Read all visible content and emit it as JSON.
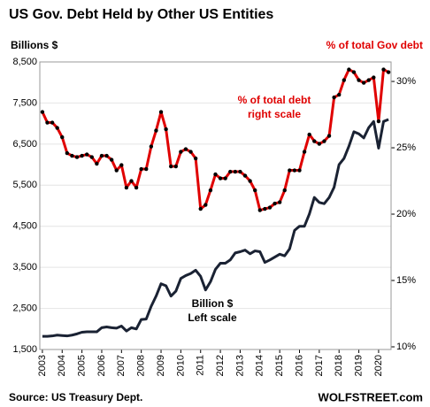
{
  "chart_data": {
    "type": "line",
    "title": "US Gov. Debt Held by Other US Entities",
    "y_label": "Billions $",
    "y2_label": "% of total Gov debt",
    "annotations": [
      {
        "lines": [
          "% of total debt",
          "right scale"
        ],
        "color": "#e00000"
      },
      {
        "lines": [
          "Billion $",
          "Left scale"
        ],
        "color": "#000000"
      }
    ],
    "source": "Source: US Treasury Dept.",
    "brand": "WOLFSTREET.com",
    "x": [
      2003,
      2003.25,
      2003.5,
      2003.75,
      2004,
      2004.25,
      2004.5,
      2004.75,
      2005,
      2005.25,
      2005.5,
      2005.75,
      2006,
      2006.25,
      2006.5,
      2006.75,
      2007,
      2007.25,
      2007.5,
      2007.75,
      2008,
      2008.25,
      2008.5,
      2008.75,
      2009,
      2009.25,
      2009.5,
      2009.75,
      2010,
      2010.25,
      2010.5,
      2010.75,
      2011,
      2011.25,
      2011.5,
      2011.75,
      2012,
      2012.25,
      2012.5,
      2012.75,
      2013,
      2013.25,
      2013.5,
      2013.75,
      2014,
      2014.25,
      2014.5,
      2014.75,
      2015,
      2015.25,
      2015.5,
      2015.75,
      2016,
      2016.25,
      2016.5,
      2016.75,
      2017,
      2017.25,
      2017.5,
      2017.75,
      2018,
      2018.25,
      2018.5,
      2018.75,
      2019,
      2019.25,
      2019.5,
      2019.75,
      2020,
      2020.25,
      2020.5
    ],
    "series": [
      {
        "color": "#1a2233",
        "axis": "y",
        "values": [
          1820,
          1820,
          1830,
          1850,
          1840,
          1830,
          1850,
          1880,
          1920,
          1930,
          1930,
          1930,
          2030,
          2050,
          2030,
          2020,
          2070,
          1950,
          2030,
          2000,
          2230,
          2240,
          2550,
          2800,
          3100,
          3050,
          2800,
          2920,
          3230,
          3300,
          3350,
          3430,
          3280,
          2950,
          3150,
          3450,
          3600,
          3600,
          3680,
          3850,
          3880,
          3920,
          3830,
          3900,
          3880,
          3620,
          3680,
          3750,
          3820,
          3780,
          3950,
          4400,
          4500,
          4500,
          4800,
          5200,
          5080,
          5050,
          5200,
          5450,
          6000,
          6150,
          6450,
          6800,
          6750,
          6650,
          6900,
          7050,
          6400,
          7050,
          7100
        ]
      },
      {
        "color": "#e00000",
        "axis": "y2",
        "markers": true,
        "values": [
          27.7,
          26.9,
          26.9,
          26.5,
          25.8,
          24.6,
          24.4,
          24.3,
          24.4,
          24.5,
          24.3,
          23.8,
          24.4,
          24.4,
          24.1,
          23.3,
          23.7,
          22.0,
          22.5,
          22.0,
          23.4,
          23.4,
          25.1,
          26.3,
          27.7,
          26.4,
          23.6,
          23.6,
          24.7,
          24.9,
          24.7,
          24.2,
          20.4,
          20.7,
          21.8,
          23.0,
          22.7,
          22.7,
          23.2,
          23.2,
          23.2,
          22.9,
          22.5,
          21.8,
          20.3,
          20.4,
          20.5,
          20.8,
          20.9,
          21.8,
          23.3,
          23.3,
          23.3,
          24.7,
          26.0,
          25.5,
          25.3,
          25.5,
          25.9,
          28.8,
          29.0,
          30.1,
          30.9,
          30.7,
          30.1,
          29.9,
          30.1,
          30.3,
          27.0,
          30.9,
          30.7
        ]
      }
    ],
    "xlim": [
      2002.87,
      2020.63
    ],
    "xticks": [
      2003,
      2004,
      2005,
      2006,
      2007,
      2008,
      2009,
      2010,
      2011,
      2012,
      2013,
      2014,
      2015,
      2016,
      2017,
      2018,
      2019,
      2020
    ],
    "ylim": [
      1500,
      8500
    ],
    "yticks": [
      {
        "value": 1500,
        "label": "1,500"
      },
      {
        "value": 2500,
        "label": "2,500"
      },
      {
        "value": 3500,
        "label": "3,500"
      },
      {
        "value": 4500,
        "label": "4,500"
      },
      {
        "value": 5500,
        "label": "5,500"
      },
      {
        "value": 6500,
        "label": "6,500"
      },
      {
        "value": 7500,
        "label": "7,500"
      },
      {
        "value": 8500,
        "label": "8,500"
      }
    ],
    "y2lim": [
      9.8,
      31.47
    ],
    "y2ticks": [
      {
        "value": 10,
        "label": "10%"
      },
      {
        "value": 15,
        "label": "15%"
      },
      {
        "value": 20,
        "label": "20%"
      },
      {
        "value": 25,
        "label": "25%"
      },
      {
        "value": 30,
        "label": "30%"
      }
    ],
    "grid": true
  }
}
